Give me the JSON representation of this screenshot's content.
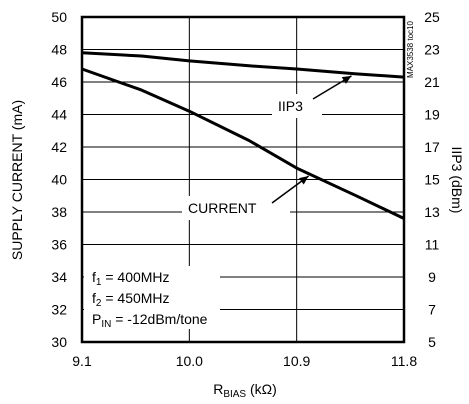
{
  "chart_data": {
    "type": "line",
    "x": [
      9.1,
      9.6,
      10.0,
      10.5,
      10.9,
      11.4,
      11.8
    ],
    "xlim": [
      9.1,
      11.8
    ],
    "x_ticks": [
      "9.1",
      "10.0",
      "10.9",
      "11.8"
    ],
    "xlabel_main": "R",
    "xlabel_sub": "BIAS",
    "xlabel_unit": " (kΩ)",
    "ylabel_left": "SUPPLY CURRENT (mA)",
    "ylim_left": [
      30,
      50
    ],
    "y_ticks_left": [
      "30",
      "32",
      "34",
      "36",
      "38",
      "40",
      "42",
      "44",
      "46",
      "48",
      "50"
    ],
    "ylabel_right": "IIP3 (dBm)",
    "ylim_right": [
      5,
      25
    ],
    "y_ticks_right": [
      "5",
      "7",
      "9",
      "11",
      "13",
      "15",
      "17",
      "19",
      "21",
      "23",
      "25"
    ],
    "grid": true,
    "series": [
      {
        "name": "IIP3",
        "axis": "right",
        "values": [
          22.8,
          22.6,
          22.3,
          22.0,
          21.8,
          21.5,
          21.3
        ]
      },
      {
        "name": "CURRENT",
        "axis": "left",
        "values": [
          46.8,
          45.5,
          44.2,
          42.4,
          40.7,
          39.0,
          37.6
        ]
      }
    ],
    "conditions": {
      "f1_main": "f",
      "f1_sub": "1",
      "f1_rest": " = 400MHz",
      "f2_main": "f",
      "f2_sub": "2",
      "f2_rest": " = 450MHz",
      "pin_main": "P",
      "pin_sub": "IN",
      "pin_rest": " = -12dBm/tone"
    },
    "figure_id": "MAX3538 toc10",
    "line_color": "#000000"
  }
}
